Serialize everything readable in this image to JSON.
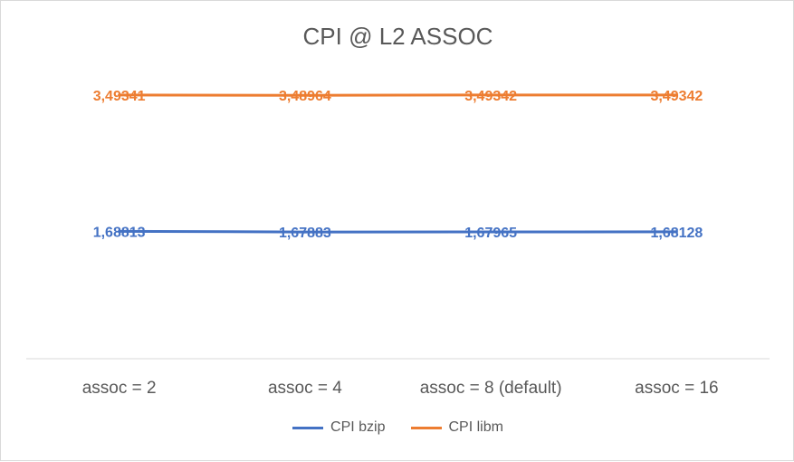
{
  "chart_data": {
    "type": "line",
    "title": "CPI @ L2 ASSOC",
    "categories": [
      "assoc = 2",
      "assoc = 4",
      "assoc = 8 (default)",
      "assoc = 16"
    ],
    "series": [
      {
        "name": "CPI bzip",
        "color": "#4472c4",
        "values": [
          1.68813,
          1.67883,
          1.67965,
          1.68128
        ],
        "labels": [
          "1,68813",
          "1,67883",
          "1,67965",
          "1,68128"
        ]
      },
      {
        "name": "CPI libm",
        "color": "#ed7d31",
        "values": [
          3.49341,
          3.48964,
          3.49342,
          3.49342
        ],
        "labels": [
          "3,49341",
          "3,48964",
          "3,49342",
          "3,49342"
        ]
      }
    ],
    "ylim": [
      0,
      4.5
    ],
    "grid": false,
    "legend_position": "bottom",
    "xlabel": "",
    "ylabel": ""
  }
}
